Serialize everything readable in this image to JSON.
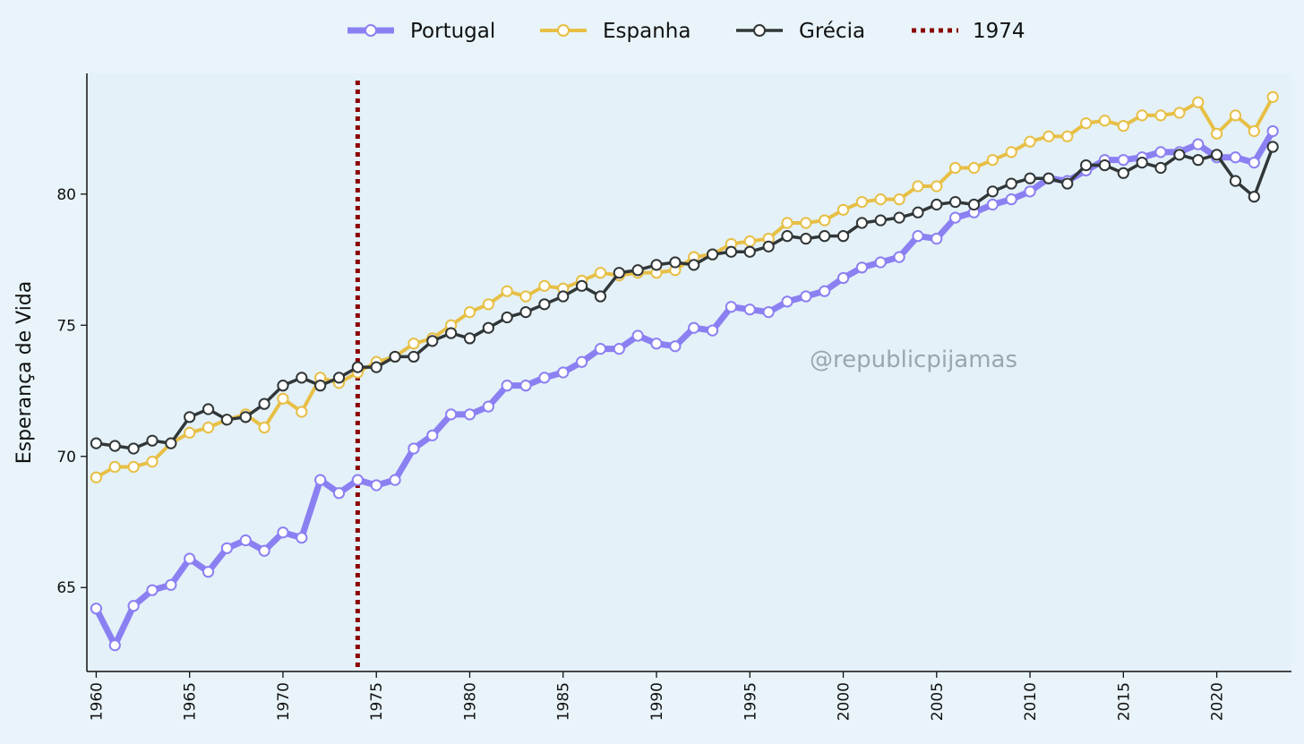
{
  "chart_data": {
    "type": "line",
    "title": "",
    "xlabel": "",
    "ylabel": "Esperança de Vida",
    "xlim": [
      1959.5,
      2024
    ],
    "ylim": [
      61.8,
      84.6
    ],
    "xticks": [
      "1960",
      "1965",
      "1970",
      "1975",
      "1980",
      "1985",
      "1990",
      "1995",
      "2000",
      "2005",
      "2010",
      "2015",
      "2020"
    ],
    "yticks": [
      "65",
      "70",
      "75",
      "80"
    ],
    "x": [
      1960,
      1961,
      1962,
      1963,
      1964,
      1965,
      1966,
      1967,
      1968,
      1969,
      1970,
      1971,
      1972,
      1973,
      1974,
      1975,
      1976,
      1977,
      1978,
      1979,
      1980,
      1981,
      1982,
      1983,
      1984,
      1985,
      1986,
      1987,
      1988,
      1989,
      1990,
      1991,
      1992,
      1993,
      1994,
      1995,
      1996,
      1997,
      1998,
      1999,
      2000,
      2001,
      2002,
      2003,
      2004,
      2005,
      2006,
      2007,
      2008,
      2009,
      2010,
      2011,
      2012,
      2013,
      2014,
      2015,
      2016,
      2017,
      2018,
      2019,
      2020,
      2021,
      2022,
      2023
    ],
    "series": [
      {
        "name": "Portugal",
        "color": "#8b80f2",
        "values": [
          64.2,
          62.8,
          64.3,
          64.9,
          65.1,
          66.1,
          65.6,
          66.5,
          66.8,
          66.4,
          67.1,
          66.9,
          69.1,
          68.6,
          69.1,
          68.9,
          69.1,
          70.3,
          70.8,
          71.6,
          71.6,
          71.9,
          72.7,
          72.7,
          73.0,
          73.2,
          73.6,
          74.1,
          74.1,
          74.6,
          74.3,
          74.2,
          74.9,
          74.8,
          75.7,
          75.6,
          75.5,
          75.9,
          76.1,
          76.3,
          76.8,
          77.2,
          77.4,
          77.6,
          78.4,
          78.3,
          79.1,
          79.3,
          79.6,
          79.8,
          80.1,
          80.6,
          80.5,
          80.9,
          81.3,
          81.3,
          81.4,
          81.6,
          81.6,
          81.9,
          81.4,
          81.4,
          81.2,
          82.4
        ]
      },
      {
        "name": "Espanha",
        "color": "#e7bf45",
        "values": [
          69.2,
          69.6,
          69.6,
          69.8,
          70.5,
          70.9,
          71.1,
          71.4,
          71.6,
          71.1,
          72.2,
          71.7,
          73.0,
          72.8,
          73.2,
          73.6,
          73.8,
          74.3,
          74.5,
          75.0,
          75.5,
          75.8,
          76.3,
          76.1,
          76.5,
          76.4,
          76.7,
          77.0,
          76.9,
          77.0,
          77.0,
          77.1,
          77.6,
          77.7,
          78.1,
          78.2,
          78.3,
          78.9,
          78.9,
          79.0,
          79.4,
          79.7,
          79.8,
          79.8,
          80.3,
          80.3,
          81.0,
          81.0,
          81.3,
          81.6,
          82.0,
          82.2,
          82.2,
          82.7,
          82.8,
          82.6,
          83.0,
          83.0,
          83.1,
          83.5,
          82.3,
          83.0,
          82.4,
          83.7
        ]
      },
      {
        "name": "Grécia",
        "color": "#313637",
        "values": [
          70.5,
          70.4,
          70.3,
          70.6,
          70.5,
          71.5,
          71.8,
          71.4,
          71.5,
          72.0,
          72.7,
          73.0,
          72.7,
          73.0,
          73.4,
          73.4,
          73.8,
          73.8,
          74.4,
          74.7,
          74.5,
          74.9,
          75.3,
          75.5,
          75.8,
          76.1,
          76.5,
          76.1,
          77.0,
          77.1,
          77.3,
          77.4,
          77.3,
          77.7,
          77.8,
          77.8,
          78.0,
          78.4,
          78.3,
          78.4,
          78.4,
          78.9,
          79.0,
          79.1,
          79.3,
          79.6,
          79.7,
          79.6,
          80.1,
          80.4,
          80.6,
          80.6,
          80.4,
          81.1,
          81.1,
          80.8,
          81.2,
          81.0,
          81.5,
          81.3,
          81.5,
          80.5,
          79.9,
          81.8
        ]
      }
    ],
    "vline": {
      "x": 1974,
      "label": "1974",
      "color": "#8b0000",
      "style": "dotted"
    },
    "background_color": "#e4f1f8",
    "watermark": "@republicpijamas",
    "legend_position": "top-center"
  }
}
